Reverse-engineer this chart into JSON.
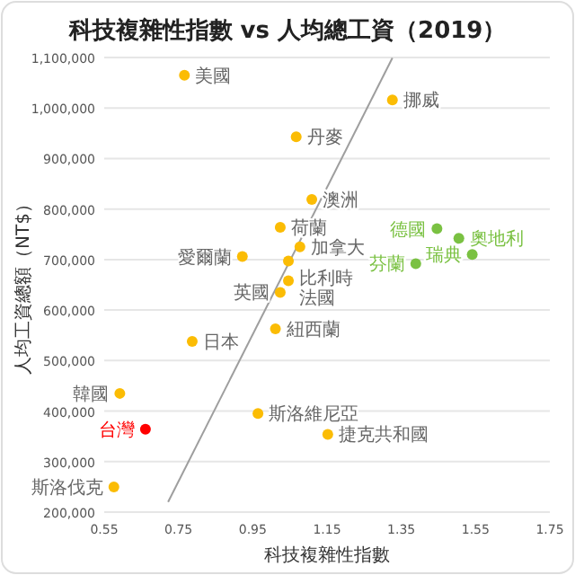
{
  "chart_data": {
    "type": "scatter",
    "title": "科技複雜性指數 vs 人均總工資（2019）",
    "xlabel": "科技複雜性指數",
    "ylabel": "人均工資總額（NT$）",
    "xlim": [
      0.55,
      1.75
    ],
    "xticks": [
      0.55,
      0.75,
      0.95,
      1.15,
      1.35,
      1.55,
      1.75
    ],
    "ylim": [
      200000,
      1100000
    ],
    "yticks": [
      {
        "value": 200000,
        "label": "200,000"
      },
      {
        "value": 300000,
        "label": "300,000"
      },
      {
        "value": 400000,
        "label": "400,000"
      },
      {
        "value": 500000,
        "label": "500,000"
      },
      {
        "value": 600000,
        "label": "600,000"
      },
      {
        "value": 700000,
        "label": "700,000"
      },
      {
        "value": 800000,
        "label": "800,000"
      },
      {
        "value": 900000,
        "label": "900,000"
      },
      {
        "value": 1000000,
        "label": "1,000,000"
      },
      {
        "value": 1100000,
        "label": "1,100,000"
      }
    ],
    "grid": "y",
    "marker": "circle",
    "series": [
      {
        "color": "#fbbc04",
        "x": [
          0.766,
          1.326,
          1.067,
          1.109,
          1.024,
          1.077,
          0.922,
          1.046,
          1.046,
          1.024,
          1.011,
          0.787,
          0.592,
          0.964,
          1.152,
          0.576
        ],
        "values": [
          1065000,
          1016000,
          943000,
          819000,
          764000,
          725000,
          706000,
          697000,
          658000,
          635000,
          563000,
          538000,
          435000,
          395000,
          354000,
          250000
        ]
      },
      {
        "color": "#7ac142",
        "x": [
          1.446,
          1.505,
          1.541,
          1.389
        ],
        "values": [
          761000,
          742000,
          710000,
          692000
        ]
      },
      {
        "color": "#ff0000",
        "x": [
          0.661
        ],
        "values": [
          364000
        ]
      },
      {
        "type": "line",
        "marker": "none",
        "color": "#9e9e9e",
        "x": [
          0.722,
          1.326
        ],
        "values": [
          220000,
          1099000
        ]
      }
    ],
    "annotations": [
      {
        "text": "美國",
        "x": 0.766,
        "y": 1065000
      },
      {
        "text": "挪威",
        "x": 1.326,
        "y": 1016000
      },
      {
        "text": "丹麥",
        "x": 1.067,
        "y": 943000
      },
      {
        "text": "澳洲",
        "x": 1.109,
        "y": 819000
      },
      {
        "text": "荷蘭",
        "x": 1.024,
        "y": 764000
      },
      {
        "text": "加拿大",
        "x": 1.077,
        "y": 725000
      },
      {
        "text": "愛爾蘭",
        "x": 0.922,
        "y": 706000
      },
      {
        "text": "比利時",
        "x": 1.046,
        "y": 697000
      },
      {
        "text": "法國",
        "x": 1.046,
        "y": 658000
      },
      {
        "text": "英國",
        "x": 1.024,
        "y": 635000
      },
      {
        "text": "紐西蘭",
        "x": 1.011,
        "y": 563000
      },
      {
        "text": "日本",
        "x": 0.787,
        "y": 538000
      },
      {
        "text": "韓國",
        "x": 0.592,
        "y": 435000
      },
      {
        "text": "斯洛維尼亞",
        "x": 0.964,
        "y": 395000
      },
      {
        "text": "捷克共和國",
        "x": 1.152,
        "y": 354000
      },
      {
        "text": "斯洛伐克",
        "x": 0.576,
        "y": 250000
      },
      {
        "text": "德國",
        "x": 1.446,
        "y": 761000
      },
      {
        "text": "奧地利",
        "x": 1.505,
        "y": 742000
      },
      {
        "text": "瑞典",
        "x": 1.541,
        "y": 710000
      },
      {
        "text": "芬蘭",
        "x": 1.389,
        "y": 692000
      },
      {
        "text": "台灣",
        "x": 0.661,
        "y": 364000
      }
    ]
  }
}
